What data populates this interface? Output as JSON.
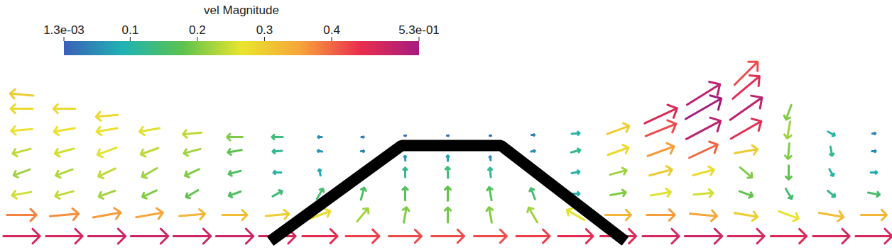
{
  "chart_data": {
    "type": "vector_field",
    "tick_labels": false,
    "xlim": [
      0,
      125.6
    ],
    "ylim": [
      0,
      35.3
    ],
    "colorbar": {
      "title": "vel Magnitude",
      "range": [
        0.0013,
        0.53
      ],
      "ticks": [
        {
          "value": 0.0013,
          "label": "1.3e-03"
        },
        0.1,
        0.2,
        0.3,
        0.4,
        {
          "value": 0.53,
          "label": "5.3e-01"
        }
      ],
      "colors": [
        "#3a5fb8",
        "#1fb3b3",
        "#5cc24f",
        "#e9e52d",
        "#f7a43a",
        "#ea2e4e",
        "#a51c80"
      ]
    },
    "obstacle": {
      "x": [
        38,
        56.5,
        70.5,
        88
      ],
      "y": [
        1.3,
        14.8,
        14.8,
        1.3
      ],
      "color": "#000000"
    },
    "vectors": [
      {
        "x": 3,
        "y": 2,
        "speed": 0.47,
        "angle": 0
      },
      {
        "x": 3,
        "y": 5,
        "speed": 0.38,
        "angle": 0
      },
      {
        "x": 3,
        "y": 8,
        "speed": 0.25,
        "angle": 190
      },
      {
        "x": 3,
        "y": 11,
        "speed": 0.22,
        "angle": 200
      },
      {
        "x": 3,
        "y": 14,
        "speed": 0.24,
        "angle": 195
      },
      {
        "x": 3,
        "y": 17,
        "speed": 0.27,
        "angle": 185
      },
      {
        "x": 3,
        "y": 20,
        "speed": 0.28,
        "angle": 180
      },
      {
        "x": 3,
        "y": 22,
        "speed": 0.3,
        "angle": 175
      },
      {
        "x": 9,
        "y": 2,
        "speed": 0.47,
        "angle": 0
      },
      {
        "x": 9,
        "y": 5,
        "speed": 0.37,
        "angle": 5
      },
      {
        "x": 9,
        "y": 8,
        "speed": 0.24,
        "angle": 195
      },
      {
        "x": 9,
        "y": 11,
        "speed": 0.23,
        "angle": 200
      },
      {
        "x": 9,
        "y": 14,
        "speed": 0.25,
        "angle": 195
      },
      {
        "x": 9,
        "y": 17,
        "speed": 0.27,
        "angle": 190
      },
      {
        "x": 9,
        "y": 20,
        "speed": 0.28,
        "angle": 180
      },
      {
        "x": 15,
        "y": 2,
        "speed": 0.48,
        "angle": 0
      },
      {
        "x": 15,
        "y": 5,
        "speed": 0.36,
        "angle": 10
      },
      {
        "x": 15,
        "y": 8,
        "speed": 0.22,
        "angle": 200
      },
      {
        "x": 15,
        "y": 11,
        "speed": 0.24,
        "angle": 205
      },
      {
        "x": 15,
        "y": 14,
        "speed": 0.26,
        "angle": 200
      },
      {
        "x": 15,
        "y": 17,
        "speed": 0.27,
        "angle": 190
      },
      {
        "x": 15,
        "y": 19,
        "speed": 0.28,
        "angle": 185
      },
      {
        "x": 21,
        "y": 2,
        "speed": 0.48,
        "angle": 0
      },
      {
        "x": 21,
        "y": 5,
        "speed": 0.35,
        "angle": 10
      },
      {
        "x": 21,
        "y": 8,
        "speed": 0.2,
        "angle": 205
      },
      {
        "x": 21,
        "y": 11,
        "speed": 0.22,
        "angle": 210
      },
      {
        "x": 21,
        "y": 14,
        "speed": 0.24,
        "angle": 200
      },
      {
        "x": 21,
        "y": 17,
        "speed": 0.26,
        "angle": 190
      },
      {
        "x": 27,
        "y": 2,
        "speed": 0.48,
        "angle": 0
      },
      {
        "x": 27,
        "y": 5,
        "speed": 0.33,
        "angle": 5
      },
      {
        "x": 27,
        "y": 8,
        "speed": 0.18,
        "angle": 210
      },
      {
        "x": 27,
        "y": 11,
        "speed": 0.2,
        "angle": 205
      },
      {
        "x": 27,
        "y": 14,
        "speed": 0.22,
        "angle": 195
      },
      {
        "x": 27,
        "y": 16.5,
        "speed": 0.24,
        "angle": 185
      },
      {
        "x": 33,
        "y": 2,
        "speed": 0.48,
        "angle": 0
      },
      {
        "x": 33,
        "y": 5,
        "speed": 0.32,
        "angle": 0
      },
      {
        "x": 33,
        "y": 8,
        "speed": 0.16,
        "angle": 200
      },
      {
        "x": 33,
        "y": 11,
        "speed": 0.16,
        "angle": 195
      },
      {
        "x": 33,
        "y": 14,
        "speed": 0.18,
        "angle": 190
      },
      {
        "x": 33,
        "y": 16,
        "speed": 0.2,
        "angle": 180
      },
      {
        "x": 39,
        "y": 2,
        "speed": 0.47,
        "angle": 0
      },
      {
        "x": 39,
        "y": 5,
        "speed": 0.3,
        "angle": 5
      },
      {
        "x": 39,
        "y": 8,
        "speed": 0.14,
        "angle": 30
      },
      {
        "x": 39,
        "y": 11,
        "speed": 0.1,
        "angle": 180
      },
      {
        "x": 39,
        "y": 14,
        "speed": 0.12,
        "angle": 185
      },
      {
        "x": 39,
        "y": 16,
        "speed": 0.14,
        "angle": 180
      },
      {
        "x": 45,
        "y": 2,
        "speed": 0.45,
        "angle": 0
      },
      {
        "x": 45,
        "y": 5,
        "speed": 0.28,
        "angle": 20
      },
      {
        "x": 45,
        "y": 8,
        "speed": 0.15,
        "angle": 60
      },
      {
        "x": 45,
        "y": 11,
        "speed": 0.08,
        "angle": 100
      },
      {
        "x": 45,
        "y": 14,
        "speed": 0.06,
        "angle": 170
      },
      {
        "x": 45,
        "y": 16,
        "speed": 0.05,
        "angle": 180
      },
      {
        "x": 51,
        "y": 2,
        "speed": 0.43,
        "angle": 0
      },
      {
        "x": 51,
        "y": 5,
        "speed": 0.22,
        "angle": 50
      },
      {
        "x": 51,
        "y": 8,
        "speed": 0.16,
        "angle": 75
      },
      {
        "x": 51,
        "y": 11,
        "speed": 0.1,
        "angle": 90
      },
      {
        "x": 51,
        "y": 14,
        "speed": 0.04,
        "angle": 0
      },
      {
        "x": 51,
        "y": 16,
        "speed": 0.03,
        "angle": 0
      },
      {
        "x": 57,
        "y": 2,
        "speed": 0.42,
        "angle": 0
      },
      {
        "x": 57,
        "y": 5,
        "speed": 0.2,
        "angle": 80
      },
      {
        "x": 57,
        "y": 8,
        "speed": 0.17,
        "angle": 90
      },
      {
        "x": 57,
        "y": 11,
        "speed": 0.12,
        "angle": 90
      },
      {
        "x": 57,
        "y": 13,
        "speed": 0.06,
        "angle": 95
      },
      {
        "x": 57,
        "y": 16.2,
        "speed": 0.02,
        "angle": 0
      },
      {
        "x": 63,
        "y": 2,
        "speed": 0.42,
        "angle": 0
      },
      {
        "x": 63,
        "y": 5,
        "speed": 0.19,
        "angle": 90
      },
      {
        "x": 63,
        "y": 8,
        "speed": 0.18,
        "angle": 90
      },
      {
        "x": 63,
        "y": 11,
        "speed": 0.14,
        "angle": 92
      },
      {
        "x": 63,
        "y": 13,
        "speed": 0.07,
        "angle": 90
      },
      {
        "x": 63,
        "y": 16.2,
        "speed": 0.02,
        "angle": 0
      },
      {
        "x": 69,
        "y": 2,
        "speed": 0.42,
        "angle": 0
      },
      {
        "x": 69,
        "y": 5,
        "speed": 0.2,
        "angle": 100
      },
      {
        "x": 69,
        "y": 8,
        "speed": 0.17,
        "angle": 100
      },
      {
        "x": 69,
        "y": 11,
        "speed": 0.12,
        "angle": 95
      },
      {
        "x": 69,
        "y": 13,
        "speed": 0.05,
        "angle": 100
      },
      {
        "x": 69,
        "y": 16.2,
        "speed": 0.02,
        "angle": 0
      },
      {
        "x": 75,
        "y": 2,
        "speed": 0.43,
        "angle": 0
      },
      {
        "x": 75,
        "y": 5,
        "speed": 0.22,
        "angle": 120
      },
      {
        "x": 75,
        "y": 8,
        "speed": 0.15,
        "angle": 110
      },
      {
        "x": 75,
        "y": 11,
        "speed": 0.05,
        "angle": 0
      },
      {
        "x": 75,
        "y": 14,
        "speed": 0.05,
        "angle": 10
      },
      {
        "x": 75,
        "y": 16.3,
        "speed": 0.04,
        "angle": 0
      },
      {
        "x": 81,
        "y": 2,
        "speed": 0.45,
        "angle": 0
      },
      {
        "x": 81,
        "y": 5,
        "speed": 0.26,
        "angle": 150
      },
      {
        "x": 81,
        "y": 8,
        "speed": 0.1,
        "angle": 0
      },
      {
        "x": 81,
        "y": 11,
        "speed": 0.1,
        "angle": 10
      },
      {
        "x": 81,
        "y": 14,
        "speed": 0.12,
        "angle": 15
      },
      {
        "x": 81,
        "y": 16.5,
        "speed": 0.1,
        "angle": 5
      },
      {
        "x": 87,
        "y": 2,
        "speed": 0.46,
        "angle": 0
      },
      {
        "x": 87,
        "y": 5,
        "speed": 0.33,
        "angle": 0
      },
      {
        "x": 87,
        "y": 8,
        "speed": 0.2,
        "angle": 10
      },
      {
        "x": 87,
        "y": 11,
        "speed": 0.22,
        "angle": 15
      },
      {
        "x": 87,
        "y": 14,
        "speed": 0.28,
        "angle": 20
      },
      {
        "x": 87,
        "y": 17,
        "speed": 0.3,
        "angle": 20
      },
      {
        "x": 93,
        "y": 2,
        "speed": 0.47,
        "angle": 0
      },
      {
        "x": 93,
        "y": 5,
        "speed": 0.36,
        "angle": 0
      },
      {
        "x": 93,
        "y": 8,
        "speed": 0.26,
        "angle": 10
      },
      {
        "x": 93,
        "y": 11,
        "speed": 0.3,
        "angle": 15
      },
      {
        "x": 93,
        "y": 14,
        "speed": 0.36,
        "angle": 20
      },
      {
        "x": 93,
        "y": 17,
        "speed": 0.42,
        "angle": 22
      },
      {
        "x": 93,
        "y": 19,
        "speed": 0.46,
        "angle": 25
      },
      {
        "x": 99,
        "y": 2,
        "speed": 0.48,
        "angle": 0
      },
      {
        "x": 99,
        "y": 5,
        "speed": 0.35,
        "angle": -5
      },
      {
        "x": 99,
        "y": 8,
        "speed": 0.25,
        "angle": 5
      },
      {
        "x": 99,
        "y": 11,
        "speed": 0.28,
        "angle": 15
      },
      {
        "x": 99,
        "y": 14,
        "speed": 0.4,
        "angle": 25
      },
      {
        "x": 99,
        "y": 17,
        "speed": 0.5,
        "angle": 28
      },
      {
        "x": 99,
        "y": 20,
        "speed": 0.53,
        "angle": 30
      },
      {
        "x": 99,
        "y": 22,
        "speed": 0.5,
        "angle": 32
      },
      {
        "x": 105,
        "y": 2,
        "speed": 0.47,
        "angle": 0
      },
      {
        "x": 105,
        "y": 5,
        "speed": 0.3,
        "angle": -10
      },
      {
        "x": 105,
        "y": 8,
        "speed": 0.18,
        "angle": -20
      },
      {
        "x": 105,
        "y": 11,
        "speed": 0.2,
        "angle": -40
      },
      {
        "x": 105,
        "y": 14,
        "speed": 0.3,
        "angle": 10
      },
      {
        "x": 105,
        "y": 17,
        "speed": 0.45,
        "angle": 30
      },
      {
        "x": 105,
        "y": 20,
        "speed": 0.5,
        "angle": 35
      },
      {
        "x": 105,
        "y": 23,
        "speed": 0.45,
        "angle": 40
      },
      {
        "x": 105,
        "y": 25,
        "speed": 0.42,
        "angle": 45
      },
      {
        "x": 111,
        "y": 2,
        "speed": 0.46,
        "angle": 0
      },
      {
        "x": 111,
        "y": 5,
        "speed": 0.27,
        "angle": -20
      },
      {
        "x": 111,
        "y": 8,
        "speed": 0.15,
        "angle": -60
      },
      {
        "x": 111,
        "y": 11,
        "speed": 0.18,
        "angle": -90
      },
      {
        "x": 111,
        "y": 14,
        "speed": 0.2,
        "angle": -95
      },
      {
        "x": 111,
        "y": 17,
        "speed": 0.22,
        "angle": -100
      },
      {
        "x": 111,
        "y": 19.5,
        "speed": 0.2,
        "angle": -110
      },
      {
        "x": 117,
        "y": 2,
        "speed": 0.47,
        "angle": 0
      },
      {
        "x": 117,
        "y": 5,
        "speed": 0.32,
        "angle": -10
      },
      {
        "x": 117,
        "y": 8,
        "speed": 0.12,
        "angle": -40
      },
      {
        "x": 117,
        "y": 11,
        "speed": 0.1,
        "angle": -60
      },
      {
        "x": 117,
        "y": 14,
        "speed": 0.12,
        "angle": -80
      },
      {
        "x": 117,
        "y": 16.5,
        "speed": 0.1,
        "angle": -30
      },
      {
        "x": 123,
        "y": 2,
        "speed": 0.47,
        "angle": 0
      },
      {
        "x": 123,
        "y": 5,
        "speed": 0.33,
        "angle": 0
      },
      {
        "x": 123,
        "y": 8,
        "speed": 0.15,
        "angle": -10
      },
      {
        "x": 123,
        "y": 11,
        "speed": 0.08,
        "angle": 0
      },
      {
        "x": 123,
        "y": 14,
        "speed": 0.05,
        "angle": 0
      },
      {
        "x": 123,
        "y": 16.5,
        "speed": 0.04,
        "angle": 0
      }
    ]
  }
}
